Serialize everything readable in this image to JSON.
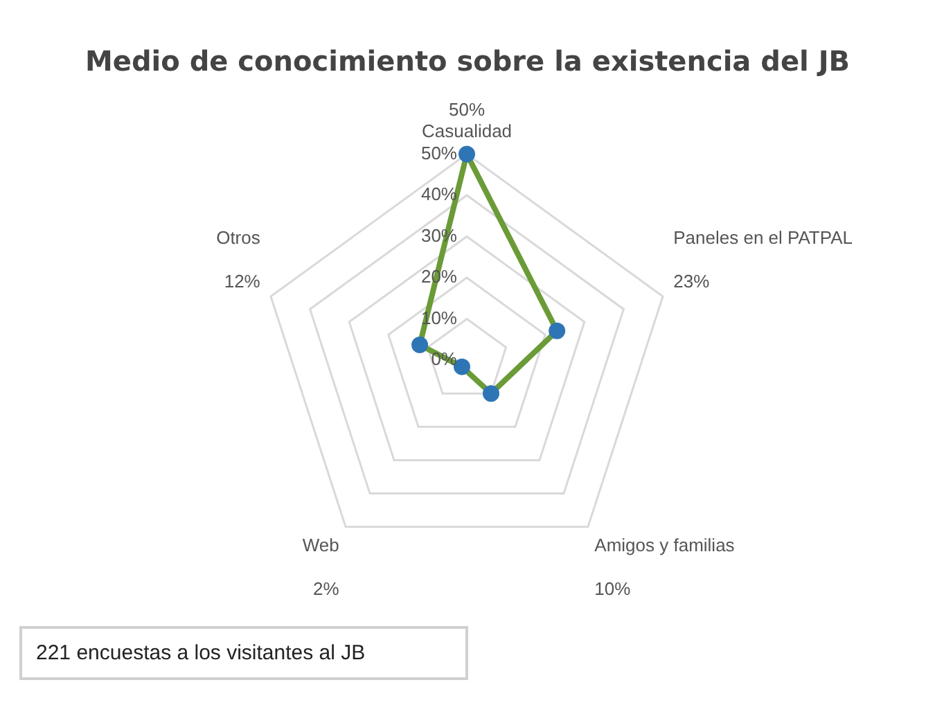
{
  "chart_data": {
    "type": "radar",
    "title": "Medio de conocimiento sobre la existencia del JB",
    "categories": [
      "Casualidad",
      "Paneles en el PATPAL",
      "Amigos y familias",
      "Web",
      "Otros"
    ],
    "series": [
      {
        "color": "#6b9b37",
        "colors": [
          "#2e75b6",
          "#2e75b6",
          "#2e75b6",
          "#2e75b6",
          "#2e75b6"
        ],
        "values": [
          50,
          23,
          10,
          2,
          12
        ]
      }
    ],
    "ylim": [
      0,
      50
    ],
    "yticks": [
      {
        "value": 0,
        "label": "0%"
      },
      {
        "value": 10,
        "label": "10%"
      },
      {
        "value": 20,
        "label": "20%"
      },
      {
        "value": 30,
        "label": "30%"
      },
      {
        "value": 40,
        "label": "40%"
      },
      {
        "value": 50,
        "label": "50%"
      }
    ],
    "value_labels": [
      "50%",
      "23%",
      "10%",
      "2%",
      "12%"
    ],
    "grid": true,
    "legend": false,
    "marker": "circle",
    "annotations": [
      "221 encuestas a los visitantes al JB"
    ]
  }
}
